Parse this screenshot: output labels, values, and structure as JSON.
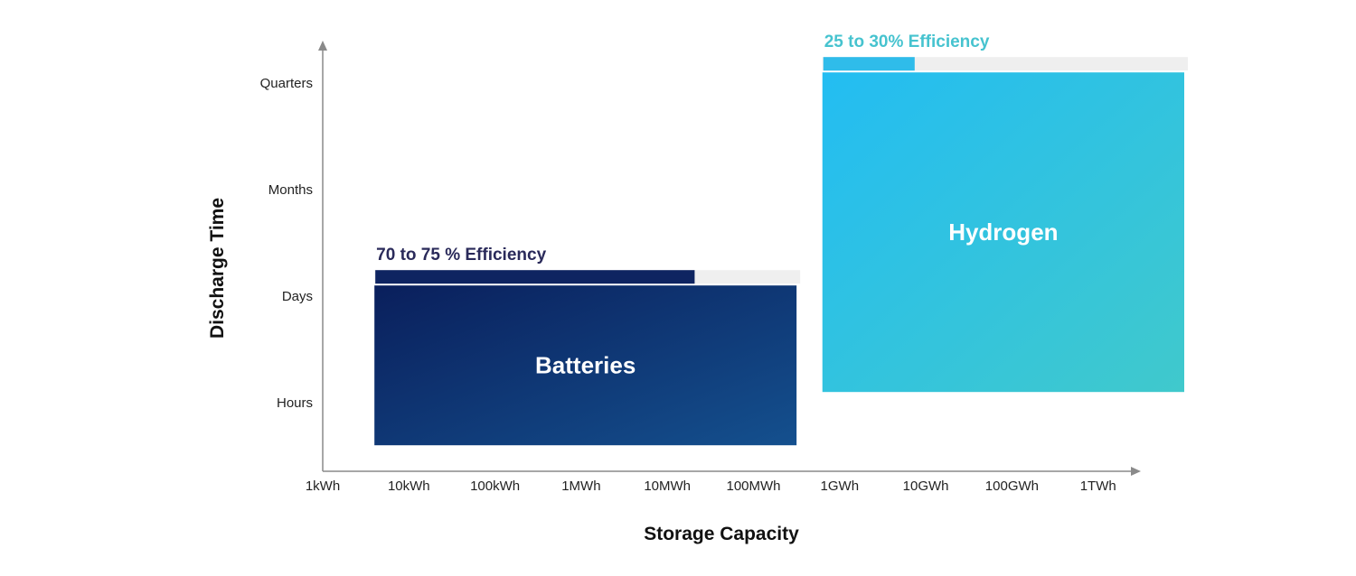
{
  "chart_data": {
    "type": "range-blocks",
    "xlabel": "Storage Capacity",
    "ylabel": "Discharge Time",
    "x_ticks": [
      "1kWh",
      "10kWh",
      "100kWh",
      "1MWh",
      "10MWh",
      "100MWh",
      "1GWh",
      "10GWh",
      "100GWh",
      "1TWh"
    ],
    "y_ticks": [
      "Hours",
      "Days",
      "Months",
      "Quarters"
    ],
    "blocks": [
      {
        "name": "Batteries",
        "x_range": [
          0.6,
          5.5
        ],
        "y_range": [
          -0.4,
          1.1
        ],
        "efficiency_label": "70 to 75 % Efficiency",
        "efficiency_fraction": 0.75,
        "gradient": [
          "#0a1f5c",
          "#14508e"
        ],
        "efficiency_color": "#0e2461",
        "label_color": "#2a2a5a"
      },
      {
        "name": "Hydrogen",
        "x_range": [
          5.8,
          10.0
        ],
        "y_range": [
          0.1,
          3.1
        ],
        "efficiency_label": "25 to 30% Efficiency",
        "efficiency_fraction": 0.25,
        "gradient": [
          "#23bdf2",
          "#40c9cc"
        ],
        "efficiency_color": "#2fbcea",
        "label_color": "#46c3cf"
      }
    ]
  }
}
